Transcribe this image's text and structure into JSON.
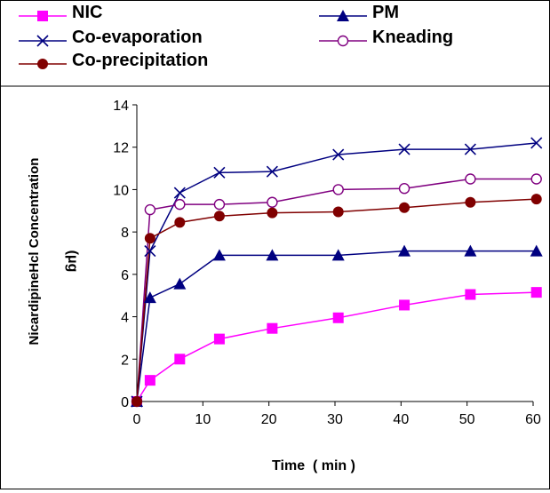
{
  "chart_data": {
    "type": "line",
    "title": "",
    "xlabel": "Time  ( min )",
    "ylabel": "NicardipineHcl Concentration",
    "ylabel_unit": "(μg",
    "xlim": [
      0,
      60
    ],
    "ylim": [
      0,
      14
    ],
    "x_ticks": [
      0,
      10,
      20,
      30,
      40,
      50,
      60
    ],
    "y_ticks": [
      0,
      2,
      4,
      6,
      8,
      10,
      12,
      14
    ],
    "grid": false,
    "legend_position": "top",
    "x": [
      0,
      2,
      6.5,
      12.5,
      20.5,
      30.5,
      40.5,
      50.5,
      60.5
    ],
    "series": [
      {
        "name": "NIC",
        "marker": "square",
        "color": "#ff00ff",
        "values": [
          0,
          1.0,
          2.0,
          2.95,
          3.45,
          3.95,
          4.55,
          5.05,
          5.15
        ]
      },
      {
        "name": "PM",
        "marker": "triangle",
        "color": "#000080",
        "values": [
          0,
          4.9,
          5.55,
          6.9,
          6.9,
          6.9,
          7.1,
          7.1,
          7.1
        ]
      },
      {
        "name": "Co-evaporation",
        "marker": "x",
        "color": "#000080",
        "values": [
          0,
          7.1,
          9.85,
          10.8,
          10.85,
          11.65,
          11.9,
          11.9,
          12.2
        ]
      },
      {
        "name": "Kneading",
        "marker": "circle-open",
        "color": "#800080",
        "values": [
          0,
          9.05,
          9.3,
          9.3,
          9.4,
          10.0,
          10.05,
          10.5,
          10.5
        ]
      },
      {
        "name": "Co-precipitation",
        "marker": "circle-filled",
        "color": "#800000",
        "values": [
          0,
          7.7,
          8.45,
          8.75,
          8.9,
          8.95,
          9.15,
          9.4,
          9.55
        ]
      }
    ]
  }
}
